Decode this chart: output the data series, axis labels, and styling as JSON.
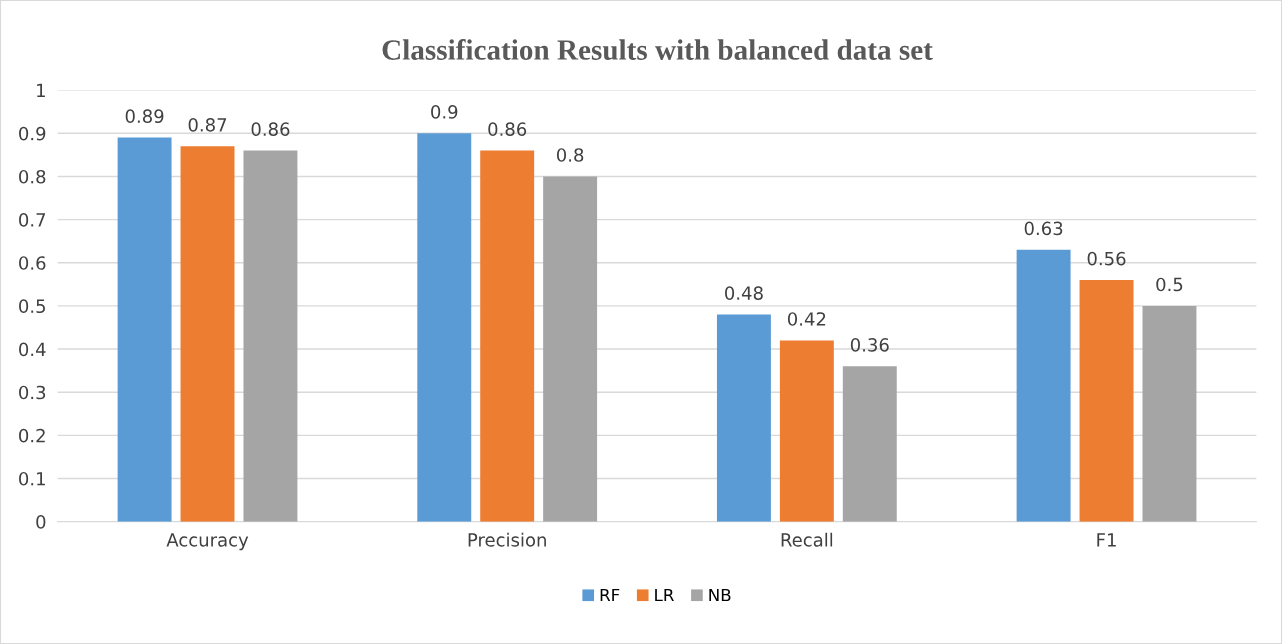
{
  "chart_data": {
    "type": "bar",
    "title": "Classification Results with balanced data set",
    "categories": [
      "Accuracy",
      "Precision",
      "Recall",
      "F1"
    ],
    "series": [
      {
        "name": "RF",
        "color": "#5b9bd5",
        "values": [
          0.89,
          0.9,
          0.48,
          0.63
        ]
      },
      {
        "name": "LR",
        "color": "#ed7d31",
        "values": [
          0.87,
          0.86,
          0.42,
          0.56
        ]
      },
      {
        "name": "NB",
        "color": "#a5a5a5",
        "values": [
          0.86,
          0.8,
          0.36,
          0.5
        ]
      }
    ],
    "ylim": [
      0,
      1
    ],
    "yticks": [
      0,
      0.1,
      0.2,
      0.3,
      0.4,
      0.5,
      0.6,
      0.7,
      0.8,
      0.9,
      1
    ],
    "grid": "y",
    "legend": "bottom",
    "data_labels": true
  }
}
